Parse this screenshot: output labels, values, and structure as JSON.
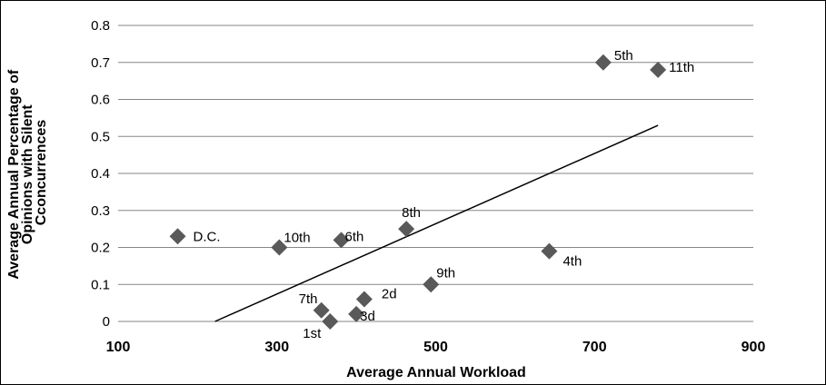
{
  "chart_data": {
    "type": "scatter",
    "xlabel": "Average Annual Workload",
    "ylabel_lines": [
      "Average Annual Percentage of",
      "Opinions with Silent",
      "Cconcurrences"
    ],
    "xlim": [
      100,
      900
    ],
    "ylim": [
      0,
      0.8
    ],
    "x_ticks": [
      "100",
      "300",
      "500",
      "700",
      "900"
    ],
    "y_ticks": [
      "0",
      "0.1",
      "0.2",
      "0.3",
      "0.4",
      "0.5",
      "0.6",
      "0.7",
      "0.8"
    ],
    "grid": "horizontal",
    "marker_color": "#595959",
    "points": [
      {
        "label": "D.C.",
        "x": 175,
        "y": 0.23
      },
      {
        "label": "10th",
        "x": 303,
        "y": 0.2
      },
      {
        "label": "6th",
        "x": 381,
        "y": 0.22
      },
      {
        "label": "8th",
        "x": 463,
        "y": 0.25
      },
      {
        "label": "7th",
        "x": 356,
        "y": 0.03
      },
      {
        "label": "1st",
        "x": 367,
        "y": 0.0
      },
      {
        "label": "3d",
        "x": 400,
        "y": 0.02
      },
      {
        "label": "2d",
        "x": 410,
        "y": 0.06
      },
      {
        "label": "9th",
        "x": 494,
        "y": 0.1
      },
      {
        "label": "4th",
        "x": 643,
        "y": 0.19
      },
      {
        "label": "5th",
        "x": 711,
        "y": 0.7
      },
      {
        "label": "11th",
        "x": 780,
        "y": 0.68
      }
    ],
    "trendline": {
      "x": [
        222,
        780
      ],
      "y": [
        0.0,
        0.53
      ]
    }
  }
}
